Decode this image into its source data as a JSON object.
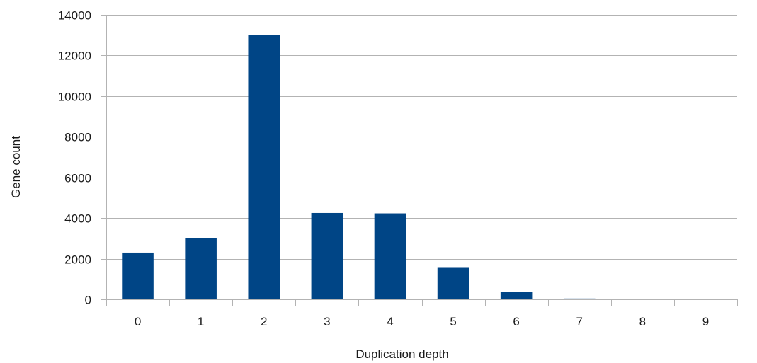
{
  "chart_data": {
    "type": "bar",
    "title": "",
    "xlabel": "Duplication depth",
    "ylabel": "Gene count",
    "categories": [
      "0",
      "1",
      "2",
      "3",
      "4",
      "5",
      "6",
      "7",
      "8",
      "9"
    ],
    "values": [
      2300,
      3000,
      13000,
      4250,
      4230,
      1550,
      350,
      40,
      30,
      10
    ],
    "ylim": [
      0,
      14000
    ],
    "yticks": [
      "0",
      "2000",
      "4000",
      "6000",
      "8000",
      "10000",
      "12000",
      "14000"
    ],
    "grid": true,
    "legend": "none",
    "bar_color": "#004586",
    "grid_color": "#b3b3b3"
  }
}
